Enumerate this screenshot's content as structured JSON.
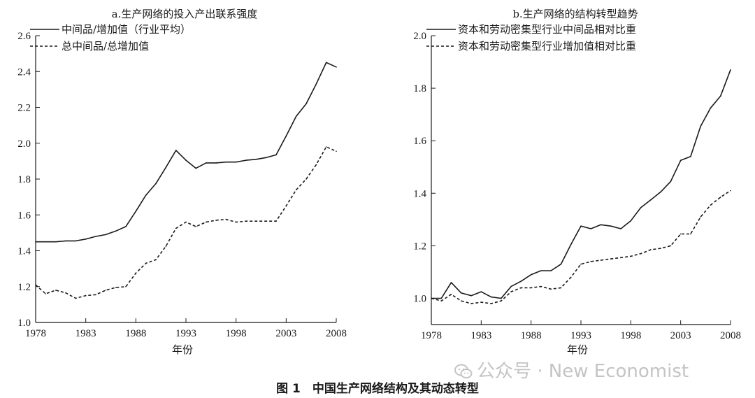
{
  "chart_data": [
    {
      "type": "line",
      "title": "a.生产网络的投入产出联系强度",
      "xlabel": "年份",
      "ylabel": "",
      "xlim": [
        1978,
        2008
      ],
      "ylim": [
        1.0,
        2.6
      ],
      "x_ticks": [
        1978,
        1983,
        1988,
        1993,
        1998,
        2003,
        2008
      ],
      "y_ticks": [
        "1.0",
        "1.2",
        "1.4",
        "1.6",
        "1.8",
        "2.0",
        "2.2",
        "2.4",
        "2.6"
      ],
      "legend_position": "top-left",
      "x": [
        1978,
        1979,
        1980,
        1981,
        1982,
        1983,
        1984,
        1985,
        1986,
        1987,
        1988,
        1989,
        1990,
        1991,
        1992,
        1993,
        1994,
        1995,
        1996,
        1997,
        1998,
        1999,
        2000,
        2001,
        2002,
        2003,
        2004,
        2005,
        2006,
        2007,
        2008
      ],
      "series": [
        {
          "name": "中间品/增加值（行业平均）",
          "style": "solid",
          "values": [
            1.45,
            1.45,
            1.45,
            1.455,
            1.455,
            1.465,
            1.48,
            1.49,
            1.51,
            1.535,
            1.62,
            1.71,
            1.775,
            1.865,
            1.96,
            1.905,
            1.86,
            1.89,
            1.89,
            1.895,
            1.895,
            1.905,
            1.91,
            1.92,
            1.935,
            2.04,
            2.15,
            2.22,
            2.33,
            2.45,
            2.425
          ]
        },
        {
          "name": "总中间品/总增加值",
          "style": "dashed",
          "values": [
            1.21,
            1.16,
            1.18,
            1.165,
            1.135,
            1.15,
            1.155,
            1.18,
            1.195,
            1.2,
            1.275,
            1.33,
            1.35,
            1.425,
            1.525,
            1.56,
            1.535,
            1.56,
            1.57,
            1.575,
            1.56,
            1.565,
            1.565,
            1.565,
            1.565,
            1.65,
            1.74,
            1.8,
            1.88,
            1.98,
            1.955
          ]
        }
      ]
    },
    {
      "type": "line",
      "title": "b.生产网络的结构转型趋势",
      "xlabel": "年份",
      "ylabel": "",
      "xlim": [
        1978,
        2008
      ],
      "ylim": [
        0.9,
        2.0
      ],
      "x_ticks": [
        1978,
        1983,
        1988,
        1993,
        1998,
        2003,
        2008
      ],
      "y_ticks": [
        "1.0",
        "1.2",
        "1.4",
        "1.6",
        "1.8",
        "2.0"
      ],
      "legend_position": "top-left",
      "x": [
        1978,
        1979,
        1980,
        1981,
        1982,
        1983,
        1984,
        1985,
        1986,
        1987,
        1988,
        1989,
        1990,
        1991,
        1992,
        1993,
        1994,
        1995,
        1996,
        1997,
        1998,
        1999,
        2000,
        2001,
        2002,
        2003,
        2004,
        2005,
        2006,
        2007,
        2008
      ],
      "series": [
        {
          "name": "资本和劳动密集型行业中间品相对比重",
          "style": "solid",
          "values": [
            1.0,
            1.0,
            1.06,
            1.02,
            1.01,
            1.025,
            1.005,
            1.0,
            1.045,
            1.065,
            1.09,
            1.105,
            1.105,
            1.13,
            1.205,
            1.275,
            1.265,
            1.28,
            1.275,
            1.265,
            1.295,
            1.345,
            1.375,
            1.405,
            1.445,
            1.525,
            1.54,
            1.655,
            1.725,
            1.77,
            1.87
          ]
        },
        {
          "name": "资本和劳动密集型行业增加值相对比重",
          "style": "dashed",
          "values": [
            1.0,
            0.99,
            1.015,
            0.99,
            0.98,
            0.985,
            0.98,
            0.99,
            1.025,
            1.04,
            1.04,
            1.045,
            1.035,
            1.04,
            1.08,
            1.13,
            1.14,
            1.145,
            1.15,
            1.155,
            1.16,
            1.17,
            1.185,
            1.19,
            1.2,
            1.245,
            1.245,
            1.31,
            1.355,
            1.385,
            1.41
          ]
        }
      ]
    }
  ],
  "watermark": {
    "text": "公众号 · New Economist",
    "icon": "wechat-icon"
  },
  "caption": "图 1　中国生产网络结构及其动态转型"
}
